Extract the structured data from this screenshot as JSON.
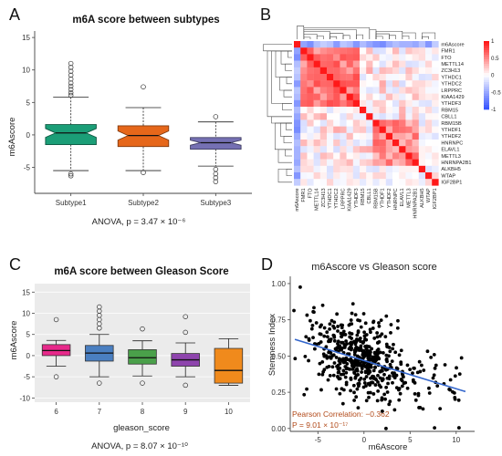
{
  "panels": {
    "A": "A",
    "B": "B",
    "C": "C",
    "D": "D"
  },
  "colors": {
    "heat_pos": "#e41a1c",
    "heat_neg": "#3b4cc0",
    "line_blue": "#3366cc"
  },
  "chart_data": [
    {
      "type": "box",
      "id": "A",
      "title": "m6A score between subtypes",
      "ylabel": "m6Ascore",
      "xlabel": "",
      "ylim": [
        -9,
        16
      ],
      "yticks": [
        -5,
        0,
        5,
        10,
        15
      ],
      "categories": [
        "Subtype1",
        "Subtype2",
        "Subtype3"
      ],
      "colors": [
        "#1b9e77",
        "#e6671a",
        "#7570b3"
      ],
      "boxes": [
        {
          "min": -5.5,
          "q1": -1.5,
          "median": 0.3,
          "q3": 1.6,
          "max": 5.8,
          "outliers": [
            6.1,
            6.5,
            7.0,
            7.5,
            8.0,
            8.6,
            9.2,
            9.8,
            10.4,
            11.0,
            -6.0,
            -6.3
          ]
        },
        {
          "min": -5.5,
          "q1": -1.8,
          "median": -0.1,
          "q3": 1.4,
          "max": 4.2,
          "outliers": [
            7.4,
            -5.8
          ]
        },
        {
          "min": -4.8,
          "q1": -2.2,
          "median": -1.2,
          "q3": -0.4,
          "max": 2.0,
          "outliers": [
            2.8,
            -5.3,
            -6.0,
            -6.6,
            -7.2
          ]
        }
      ],
      "note": "ANOVA, p = 3.47 × 10⁻⁶"
    },
    {
      "type": "heatmap",
      "id": "B",
      "title": "",
      "genes": [
        "m6Ascore",
        "FMR1",
        "FTO",
        "METTL14",
        "ZC3H13",
        "YTHDC1",
        "YTHDC2",
        "LRPPRC",
        "KIAA1429",
        "YTHDF3",
        "RBM15",
        "CBLL1",
        "RBM15B",
        "YTHDF1",
        "YTHDF2",
        "HNRNPC",
        "ELAVL1",
        "METTL3",
        "HNRNPA2B1",
        "ALKBH5",
        "WTAP",
        "IGF2BP1"
      ],
      "scale_range": [
        -1,
        1
      ],
      "legend_ticks": [
        1,
        0.5,
        0,
        -0.5,
        -1
      ]
    },
    {
      "type": "box",
      "id": "C",
      "title": "m6A score between Gleason Score",
      "ylabel": "m6Ascore",
      "xlabel": "gleason_score",
      "ylim": [
        -11,
        17
      ],
      "yticks": [
        -10,
        -5,
        0,
        5,
        10,
        15
      ],
      "categories": [
        "6",
        "7",
        "8",
        "9",
        "10"
      ],
      "colors": [
        "#e7298a",
        "#4a7fc1",
        "#4aa04a",
        "#8e44ad",
        "#f08a1c"
      ],
      "boxes": [
        {
          "min": -2.5,
          "q1": 0.0,
          "median": 1.2,
          "q3": 2.6,
          "max": 3.6,
          "outliers": [
            8.5,
            -5.0
          ]
        },
        {
          "min": -5.0,
          "q1": -1.3,
          "median": 0.6,
          "q3": 2.4,
          "max": 5.0,
          "outliers": [
            6.5,
            7.5,
            8.5,
            9.5,
            10.5,
            11.5,
            -6.5
          ]
        },
        {
          "min": -4.8,
          "q1": -2.0,
          "median": -0.5,
          "q3": 1.4,
          "max": 3.5,
          "outliers": [
            6.3,
            -6.5
          ]
        },
        {
          "min": -5.0,
          "q1": -2.5,
          "median": -1.0,
          "q3": 0.5,
          "max": 3.0,
          "outliers": [
            5.5,
            9.2,
            -7.0
          ]
        },
        {
          "min": -7.0,
          "q1": -6.5,
          "median": -3.5,
          "q3": 1.7,
          "max": 4.0,
          "outliers": []
        }
      ],
      "note": "ANOVA, p = 8.07 × 10⁻¹⁰"
    },
    {
      "type": "scatter",
      "id": "D",
      "title": "m6Ascore vs Gleason score",
      "xlabel": "m6Ascore",
      "ylabel": "Stemness Index",
      "xlim": [
        -8,
        12
      ],
      "ylim": [
        -0.02,
        1.05
      ],
      "xticks": [
        -5,
        0,
        5,
        10
      ],
      "yticks": [
        0.0,
        0.25,
        0.5,
        0.75,
        1.0
      ],
      "ytick_labels": [
        "0.00",
        "0.25",
        "0.50",
        "0.75",
        "1.00"
      ],
      "regression": {
        "x": [
          -7.5,
          11
        ],
        "y": [
          0.615,
          0.255
        ]
      },
      "annotation": [
        "Pearson Correlation: −0.362",
        "P = 9.01 × 10⁻¹⁷"
      ],
      "n_points": 520
    }
  ]
}
